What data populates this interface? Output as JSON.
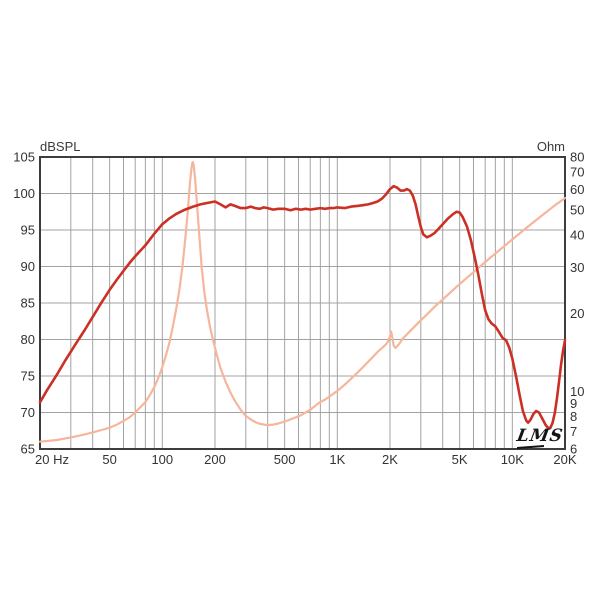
{
  "chart_data": {
    "type": "line",
    "title": "",
    "watermark": "LMS",
    "x_axis": {
      "scale": "log",
      "min": 20,
      "max": 20000,
      "unit": "Hz",
      "tick_labels": [
        {
          "f": 20,
          "label": "20 Hz"
        },
        {
          "f": 50,
          "label": "50"
        },
        {
          "f": 100,
          "label": "100"
        },
        {
          "f": 200,
          "label": "200"
        },
        {
          "f": 500,
          "label": "500"
        },
        {
          "f": 1000,
          "label": "1K"
        },
        {
          "f": 2000,
          "label": "2K"
        },
        {
          "f": 5000,
          "label": "5K"
        },
        {
          "f": 10000,
          "label": "10K"
        },
        {
          "f": 20000,
          "label": "20K"
        }
      ]
    },
    "left_axis": {
      "title": "dBSPL",
      "scale": "linear",
      "min": 65,
      "max": 105,
      "step": 5,
      "ticks": [
        105,
        100,
        95,
        90,
        85,
        80,
        75,
        70,
        65
      ]
    },
    "right_axis": {
      "title": "Ohm",
      "scale": "log",
      "min": 6,
      "max": 80,
      "ticks": [
        80,
        70,
        60,
        50,
        40,
        30,
        20,
        10,
        9,
        8,
        7,
        6
      ]
    },
    "grid": true,
    "colors": {
      "spl_curve": "#cc2f23",
      "impedance_curve": "#f5b69b",
      "gridline": "#a3a3a3",
      "frame": "#3d3d3d",
      "text": "#333333"
    },
    "series": [
      {
        "name": "impedance-curve",
        "axis": "right",
        "color_key": "impedance_curve",
        "points": [
          [
            20,
            6.4
          ],
          [
            25,
            6.5
          ],
          [
            30,
            6.65
          ],
          [
            35,
            6.8
          ],
          [
            40,
            6.95
          ],
          [
            45,
            7.1
          ],
          [
            50,
            7.25
          ],
          [
            55,
            7.45
          ],
          [
            60,
            7.7
          ],
          [
            65,
            7.95
          ],
          [
            70,
            8.3
          ],
          [
            75,
            8.7
          ],
          [
            80,
            9.1
          ],
          [
            85,
            9.7
          ],
          [
            90,
            10.4
          ],
          [
            95,
            11.3
          ],
          [
            100,
            12.4
          ],
          [
            105,
            13.8
          ],
          [
            110,
            15.5
          ],
          [
            115,
            17.8
          ],
          [
            120,
            20.8
          ],
          [
            125,
            24.5
          ],
          [
            130,
            30
          ],
          [
            135,
            38
          ],
          [
            140,
            50
          ],
          [
            144,
            64
          ],
          [
            147,
            73
          ],
          [
            149,
            76.5
          ],
          [
            151,
            75
          ],
          [
            154,
            66
          ],
          [
            158,
            52
          ],
          [
            163,
            39
          ],
          [
            168,
            30
          ],
          [
            174,
            24
          ],
          [
            180,
            20.5
          ],
          [
            188,
            17.5
          ],
          [
            196,
            15.5
          ],
          [
            205,
            13.8
          ],
          [
            215,
            12.3
          ],
          [
            230,
            10.9
          ],
          [
            245,
            9.9
          ],
          [
            260,
            9.2
          ],
          [
            280,
            8.5
          ],
          [
            300,
            8.05
          ],
          [
            320,
            7.8
          ],
          [
            340,
            7.62
          ],
          [
            360,
            7.5
          ],
          [
            380,
            7.45
          ],
          [
            400,
            7.42
          ],
          [
            430,
            7.45
          ],
          [
            460,
            7.52
          ],
          [
            500,
            7.65
          ],
          [
            540,
            7.8
          ],
          [
            580,
            7.95
          ],
          [
            620,
            8.1
          ],
          [
            660,
            8.3
          ],
          [
            700,
            8.5
          ],
          [
            740,
            8.75
          ],
          [
            780,
            9.0
          ],
          [
            800,
            9.1
          ],
          [
            850,
            9.3
          ],
          [
            900,
            9.55
          ],
          [
            950,
            9.8
          ],
          [
            1000,
            10.05
          ],
          [
            1100,
            10.6
          ],
          [
            1200,
            11.2
          ],
          [
            1300,
            11.8
          ],
          [
            1400,
            12.4
          ],
          [
            1500,
            13.0
          ],
          [
            1600,
            13.6
          ],
          [
            1700,
            14.2
          ],
          [
            1800,
            14.7
          ],
          [
            1900,
            15.2
          ],
          [
            1950,
            15.6
          ],
          [
            2000,
            16.3
          ],
          [
            2030,
            17.0
          ],
          [
            2060,
            16.2
          ],
          [
            2100,
            15.0
          ],
          [
            2150,
            14.7
          ],
          [
            2250,
            15.2
          ],
          [
            2350,
            15.9
          ],
          [
            2500,
            16.6
          ],
          [
            2700,
            17.5
          ],
          [
            3000,
            18.8
          ],
          [
            3300,
            20
          ],
          [
            3600,
            21.2
          ],
          [
            4000,
            22.6
          ],
          [
            4500,
            24.3
          ],
          [
            5000,
            25.9
          ],
          [
            5500,
            27.4
          ],
          [
            6000,
            28.8
          ],
          [
            6500,
            30.2
          ],
          [
            7000,
            31.5
          ],
          [
            7500,
            32.8
          ],
          [
            8000,
            34
          ],
          [
            9000,
            36.3
          ],
          [
            10000,
            38.5
          ],
          [
            11000,
            40.6
          ],
          [
            12000,
            42.6
          ],
          [
            13000,
            44.5
          ],
          [
            14000,
            46.3
          ],
          [
            15000,
            48
          ],
          [
            16000,
            49.7
          ],
          [
            17000,
            51.3
          ],
          [
            18000,
            52.8
          ],
          [
            19000,
            54.2
          ],
          [
            20000,
            55.6
          ]
        ]
      },
      {
        "name": "spl-curve",
        "axis": "left",
        "color_key": "spl_curve",
        "points": [
          [
            20,
            71.4
          ],
          [
            22,
            73.1
          ],
          [
            25,
            75.2
          ],
          [
            28,
            77.2
          ],
          [
            32,
            79.4
          ],
          [
            36,
            81.3
          ],
          [
            40,
            83.1
          ],
          [
            45,
            85.1
          ],
          [
            50,
            86.8
          ],
          [
            55,
            88.2
          ],
          [
            60,
            89.4
          ],
          [
            65,
            90.5
          ],
          [
            70,
            91.4
          ],
          [
            80,
            92.9
          ],
          [
            90,
            94.5
          ],
          [
            100,
            95.8
          ],
          [
            110,
            96.6
          ],
          [
            120,
            97.2
          ],
          [
            135,
            97.8
          ],
          [
            150,
            98.2
          ],
          [
            165,
            98.5
          ],
          [
            180,
            98.7
          ],
          [
            200,
            98.9
          ],
          [
            215,
            98.5
          ],
          [
            230,
            98.1
          ],
          [
            245,
            98.5
          ],
          [
            260,
            98.3
          ],
          [
            280,
            98.0
          ],
          [
            300,
            98.0
          ],
          [
            320,
            98.2
          ],
          [
            340,
            98.0
          ],
          [
            360,
            97.9
          ],
          [
            380,
            98.1
          ],
          [
            400,
            98.0
          ],
          [
            430,
            97.8
          ],
          [
            460,
            97.9
          ],
          [
            500,
            97.9
          ],
          [
            540,
            97.7
          ],
          [
            580,
            97.9
          ],
          [
            620,
            97.8
          ],
          [
            660,
            97.9
          ],
          [
            700,
            97.8
          ],
          [
            750,
            97.9
          ],
          [
            800,
            98.0
          ],
          [
            850,
            97.9
          ],
          [
            900,
            98.0
          ],
          [
            950,
            98.0
          ],
          [
            1000,
            98.1
          ],
          [
            1100,
            98.0
          ],
          [
            1200,
            98.2
          ],
          [
            1300,
            98.3
          ],
          [
            1400,
            98.4
          ],
          [
            1500,
            98.5
          ],
          [
            1600,
            98.7
          ],
          [
            1700,
            98.9
          ],
          [
            1800,
            99.3
          ],
          [
            1900,
            99.9
          ],
          [
            2000,
            100.6
          ],
          [
            2100,
            101.0
          ],
          [
            2200,
            100.8
          ],
          [
            2300,
            100.4
          ],
          [
            2400,
            100.4
          ],
          [
            2500,
            100.6
          ],
          [
            2600,
            100.4
          ],
          [
            2700,
            99.7
          ],
          [
            2800,
            98.5
          ],
          [
            2900,
            96.9
          ],
          [
            3000,
            95.4
          ],
          [
            3100,
            94.4
          ],
          [
            3250,
            94.0
          ],
          [
            3400,
            94.2
          ],
          [
            3600,
            94.6
          ],
          [
            3800,
            95.2
          ],
          [
            4000,
            95.8
          ],
          [
            4300,
            96.6
          ],
          [
            4600,
            97.2
          ],
          [
            4800,
            97.5
          ],
          [
            5000,
            97.4
          ],
          [
            5200,
            96.8
          ],
          [
            5500,
            95.5
          ],
          [
            5800,
            93.6
          ],
          [
            6100,
            91.2
          ],
          [
            6400,
            88.8
          ],
          [
            6700,
            86.2
          ],
          [
            7000,
            84.0
          ],
          [
            7300,
            82.8
          ],
          [
            7600,
            82.2
          ],
          [
            8000,
            81.8
          ],
          [
            8400,
            81.0
          ],
          [
            8800,
            80.2
          ],
          [
            9200,
            79.9
          ],
          [
            9600,
            78.9
          ],
          [
            10000,
            77.4
          ],
          [
            10500,
            75.0
          ],
          [
            11000,
            72.4
          ],
          [
            11500,
            70.2
          ],
          [
            12000,
            68.9
          ],
          [
            12300,
            68.6
          ],
          [
            12700,
            69.0
          ],
          [
            13200,
            69.8
          ],
          [
            13700,
            70.2
          ],
          [
            14200,
            70.0
          ],
          [
            14800,
            69.2
          ],
          [
            15500,
            68.3
          ],
          [
            16000,
            67.9
          ],
          [
            16500,
            67.9
          ],
          [
            17000,
            68.6
          ],
          [
            17500,
            70.0
          ],
          [
            18000,
            72.0
          ],
          [
            18500,
            74.3
          ],
          [
            19000,
            76.6
          ],
          [
            19500,
            78.5
          ],
          [
            20000,
            79.9
          ]
        ]
      }
    ]
  }
}
